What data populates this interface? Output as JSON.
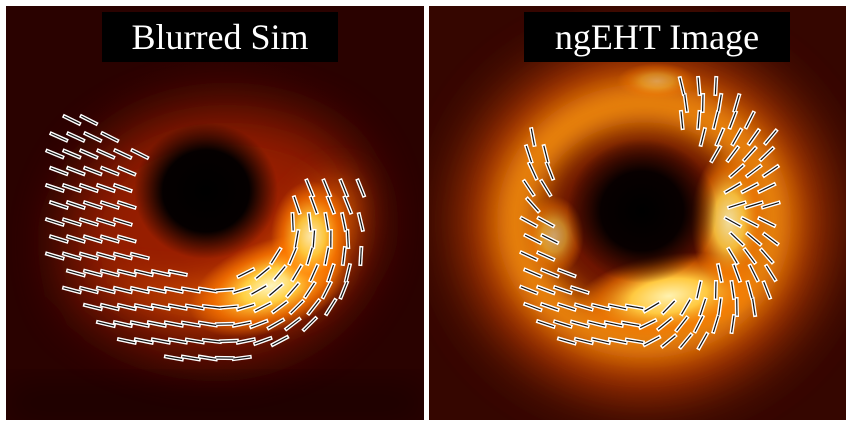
{
  "panels": [
    {
      "title": "Blurred Sim"
    },
    {
      "title": "ngEHT Image"
    }
  ],
  "colors": {
    "background_dark": "#2a0200",
    "glow_orange": "#ff8a00",
    "glow_hot": "#ffe070",
    "ticks": "#ffffff"
  },
  "icons": {
    "left": "black-hole-ring-image",
    "right": "black-hole-ring-image"
  }
}
